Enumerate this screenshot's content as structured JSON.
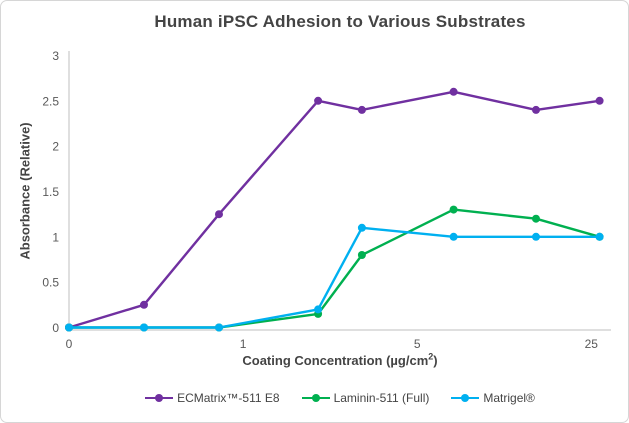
{
  "chart": {
    "title": "Human iPSC Adhesion to Various Substrates",
    "y_axis_title": "Absorbance (Relative)",
    "x_axis_title_pre": "Coating Concentration (µg/cm",
    "x_axis_title_sup": "2",
    "x_axis_title_post": ")"
  },
  "chart_data": {
    "type": "line",
    "title": "Human iPSC Adhesion to Various Substrates",
    "xlabel": "Coating Concentration (µg/cm²)",
    "ylabel": "Absorbance (Relative)",
    "x_scale": "log",
    "x_axis_display_range": [
      0.2,
      30
    ],
    "x_ticks": [
      0,
      1,
      5,
      25
    ],
    "y_ticks": [
      0,
      0.5,
      1,
      1.5,
      2,
      2.5,
      3
    ],
    "ylim": [
      0,
      3
    ],
    "grid": false,
    "legend_position": "bottom",
    "marker": "circle",
    "x": [
      0,
      0.4,
      0.8,
      2,
      3,
      7,
      15,
      27
    ],
    "series": [
      {
        "name": "ECMatrix™-511 E8",
        "color": "#7030A0",
        "values": [
          0,
          0.25,
          1.25,
          2.5,
          2.4,
          2.6,
          2.4,
          2.5
        ]
      },
      {
        "name": "Laminin-511 (Full)",
        "color": "#00B050",
        "values": [
          0,
          0,
          0,
          0.15,
          0.8,
          1.3,
          1.2,
          1.0
        ]
      },
      {
        "name": "Matrigel®",
        "color": "#00B0F0",
        "values": [
          0,
          0,
          0,
          0.2,
          1.1,
          1.0,
          1.0,
          1.0
        ]
      }
    ],
    "colors": {
      "title_text": "#444444",
      "tick_text": "#595959",
      "axis_line": "#BFBFBF"
    }
  }
}
